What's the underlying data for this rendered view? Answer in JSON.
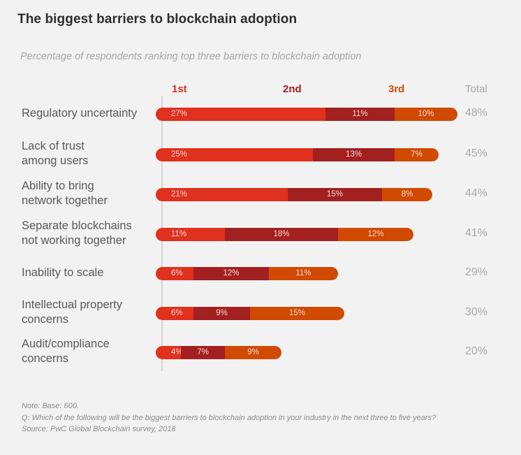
{
  "chart_data": {
    "type": "bar",
    "orientation": "horizontal",
    "stacked": true,
    "title": "The biggest barriers to blockchain adoption",
    "subtitle": "Percentage of respondents ranking top three barriers to blockchain adoption",
    "series_headers": [
      "1st",
      "2nd",
      "3rd"
    ],
    "total_header": "Total",
    "colors": {
      "1st": "#e0301e",
      "2nd": "#a32020",
      "3rd": "#d04a02"
    },
    "categories": [
      [
        "Regulatory uncertainty"
      ],
      [
        "Lack of trust",
        "among users"
      ],
      [
        "Ability to bring",
        "network together"
      ],
      [
        "Separate blockchains",
        "not working together"
      ],
      [
        "Inability to scale"
      ],
      [
        "Intellectual property",
        "concerns"
      ],
      [
        "Audit/compliance",
        "concerns"
      ]
    ],
    "series": [
      {
        "name": "1st",
        "values": [
          27,
          25,
          21,
          11,
          6,
          6,
          4
        ]
      },
      {
        "name": "2nd",
        "values": [
          11,
          13,
          15,
          18,
          12,
          9,
          7
        ]
      },
      {
        "name": "3rd",
        "values": [
          10,
          7,
          8,
          12,
          11,
          15,
          9
        ]
      }
    ],
    "totals": [
      48,
      45,
      44,
      41,
      29,
      30,
      20
    ],
    "value_suffix": "%",
    "xlim": [
      0,
      48
    ],
    "grid": false,
    "legend": "column-headers-top"
  },
  "notes": [
    "Note: Base: 600.",
    "Q: Which of the following will be the biggest barriers to blockchain adoption in your industry in the next three to five years?",
    "Source: PwC Global Blockchain survey, 2018"
  ]
}
